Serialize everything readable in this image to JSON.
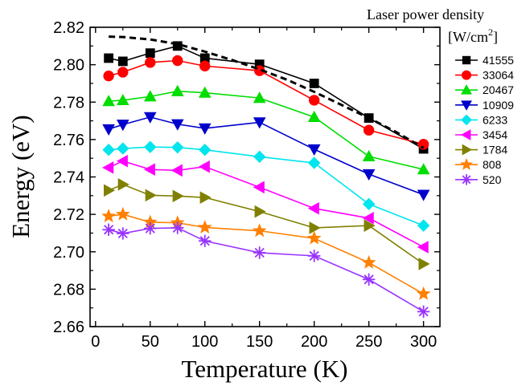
{
  "chart_data": {
    "type": "line",
    "xlabel": "Temperature (K)",
    "ylabel": "Energy (eV)",
    "xlim": [
      -5,
      315
    ],
    "ylim": [
      2.66,
      2.82
    ],
    "xticks": [
      0,
      50,
      100,
      150,
      200,
      250,
      300
    ],
    "xtick_labels": [
      "0",
      "50",
      "100",
      "150",
      "200",
      "250",
      "300"
    ],
    "yticks": [
      2.66,
      2.68,
      2.7,
      2.72,
      2.74,
      2.76,
      2.78,
      2.8,
      2.82
    ],
    "ytick_labels": [
      "2.66",
      "2.68",
      "2.70",
      "2.72",
      "2.74",
      "2.76",
      "2.78",
      "2.80",
      "2.82"
    ],
    "legend_title": "Laser power density",
    "legend_units": "[W/cm",
    "legend_units_sup": "2",
    "legend_units_end": "]",
    "legend_position": "right",
    "x": [
      12,
      25,
      50,
      75,
      100,
      150,
      200,
      250,
      300
    ],
    "series": [
      {
        "name": "41555",
        "color": "#000000",
        "marker": "square",
        "values": [
          2.8035,
          2.8018,
          2.8062,
          2.81,
          2.8035,
          2.8002,
          2.79,
          2.7715,
          2.755
        ]
      },
      {
        "name": "33064",
        "color": "#ff0000",
        "marker": "circle",
        "values": [
          2.794,
          2.796,
          2.8012,
          2.8022,
          2.7993,
          2.7968,
          2.781,
          2.765,
          2.7575
        ]
      },
      {
        "name": "20467",
        "color": "#00dd00",
        "marker": "triangle-up",
        "values": [
          2.7805,
          2.781,
          2.783,
          2.7858,
          2.785,
          2.7822,
          2.772,
          2.751,
          2.744
        ]
      },
      {
        "name": "10909",
        "color": "#0000cc",
        "marker": "triangle-down",
        "values": [
          2.7655,
          2.768,
          2.772,
          2.7682,
          2.766,
          2.7692,
          2.7548,
          2.7415,
          2.7305
        ]
      },
      {
        "name": "6233",
        "color": "#00e5ee",
        "marker": "diamond",
        "values": [
          2.7545,
          2.7552,
          2.756,
          2.7558,
          2.7545,
          2.7508,
          2.7475,
          2.7255,
          2.714
        ]
      },
      {
        "name": "3454",
        "color": "#ff00ff",
        "marker": "triangle-left",
        "values": [
          2.745,
          2.7485,
          2.744,
          2.7435,
          2.7455,
          2.7345,
          2.7232,
          2.718,
          2.7025
        ]
      },
      {
        "name": "1784",
        "color": "#808000",
        "marker": "triangle-right",
        "values": [
          2.7328,
          2.736,
          2.7302,
          2.7298,
          2.729,
          2.7215,
          2.7128,
          2.714,
          2.6935
        ]
      },
      {
        "name": "808",
        "color": "#ff8000",
        "marker": "star",
        "values": [
          2.719,
          2.72,
          2.7158,
          2.7155,
          2.713,
          2.7112,
          2.7072,
          2.6942,
          2.6775
        ]
      },
      {
        "name": "520",
        "color": "#9933ff",
        "marker": "asterisk",
        "values": [
          2.7118,
          2.7098,
          2.7125,
          2.7128,
          2.7058,
          2.6995,
          2.6978,
          2.6852,
          2.668
        ]
      }
    ],
    "fit_curve": {
      "style": "dashed",
      "color": "#000000",
      "x": [
        12,
        25,
        50,
        75,
        100,
        125,
        150,
        175,
        200,
        225,
        250,
        275,
        300
      ],
      "values": [
        2.815,
        2.8148,
        2.8135,
        2.811,
        2.807,
        2.8025,
        2.7975,
        2.792,
        2.7855,
        2.7785,
        2.7715,
        2.764,
        2.7555
      ]
    }
  }
}
